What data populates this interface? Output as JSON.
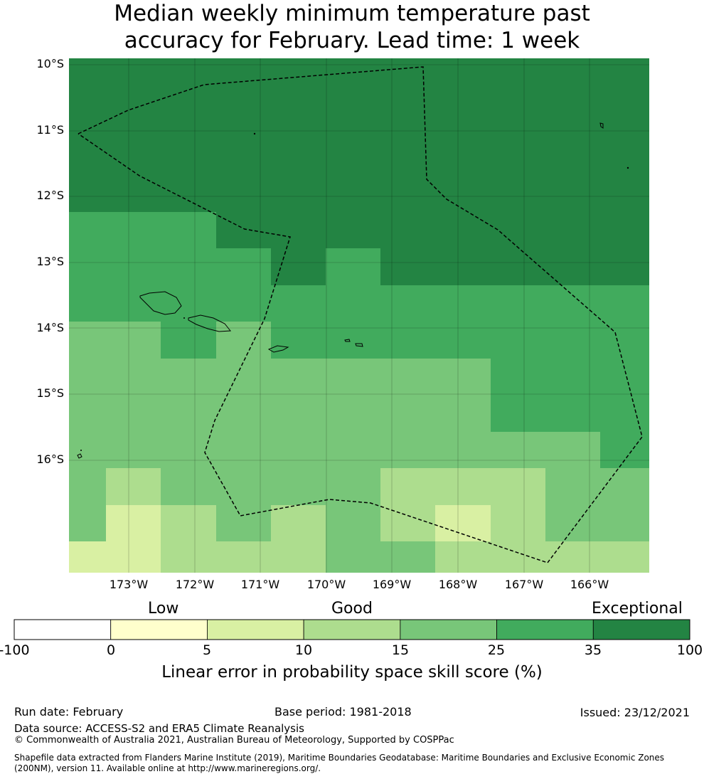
{
  "title_line1": "Median weekly minimum temperature past",
  "title_line2": "accuracy for February. Lead time: 1 week",
  "map": {
    "lat_labels": [
      "10°S",
      "11°S",
      "12°S",
      "13°S",
      "14°S",
      "15°S",
      "16°S"
    ],
    "lon_labels": [
      "173°W",
      "172°W",
      "171°W",
      "170°W",
      "169°W",
      "168°W",
      "167°W",
      "166°W"
    ],
    "extent": {
      "lon_min": -173.9,
      "lon_max": -165.1,
      "lat_top": -9.9,
      "lat_bottom": -17.7
    },
    "colors": {
      "c35": "#238443",
      "c25": "#41ab5d",
      "c15": "#78c679",
      "c10": "#addd8e",
      "c5": "#d9f0a3",
      "c0": "#ffffcc",
      "neg": "#ffffff"
    }
  },
  "colorbar": {
    "categories": [
      "Low",
      "Good",
      "Exceptional"
    ],
    "ticks": [
      "-100",
      "0",
      "5",
      "10",
      "15",
      "25",
      "35",
      "100"
    ],
    "colors": [
      "#ffffff",
      "#ffffcc",
      "#d9f0a3",
      "#addd8e",
      "#78c679",
      "#41ab5d",
      "#238443"
    ],
    "label": "Linear error in probability space skill score (%)"
  },
  "footer": {
    "run_date": "Run date: February",
    "base_period": "Base period: 1981-2018",
    "issued": "Issued: 23/12/2021",
    "data_source": "Data source: ACCESS-S2 and ERA5 Climate Reanalysis",
    "copyright": "© Commonwealth of Australia 2021, Australian Bureau of Meteorology, Supported by COSPPac",
    "shapefile_line1": "Shapefile data extracted from Flanders Marine Institute (2019), Maritime Boundaries Geodatabase: Maritime Boundaries and Exclusive Economic Zones",
    "shapefile_line2": "(200NM), version 11. Available online at http://www.marineregions.org/."
  }
}
